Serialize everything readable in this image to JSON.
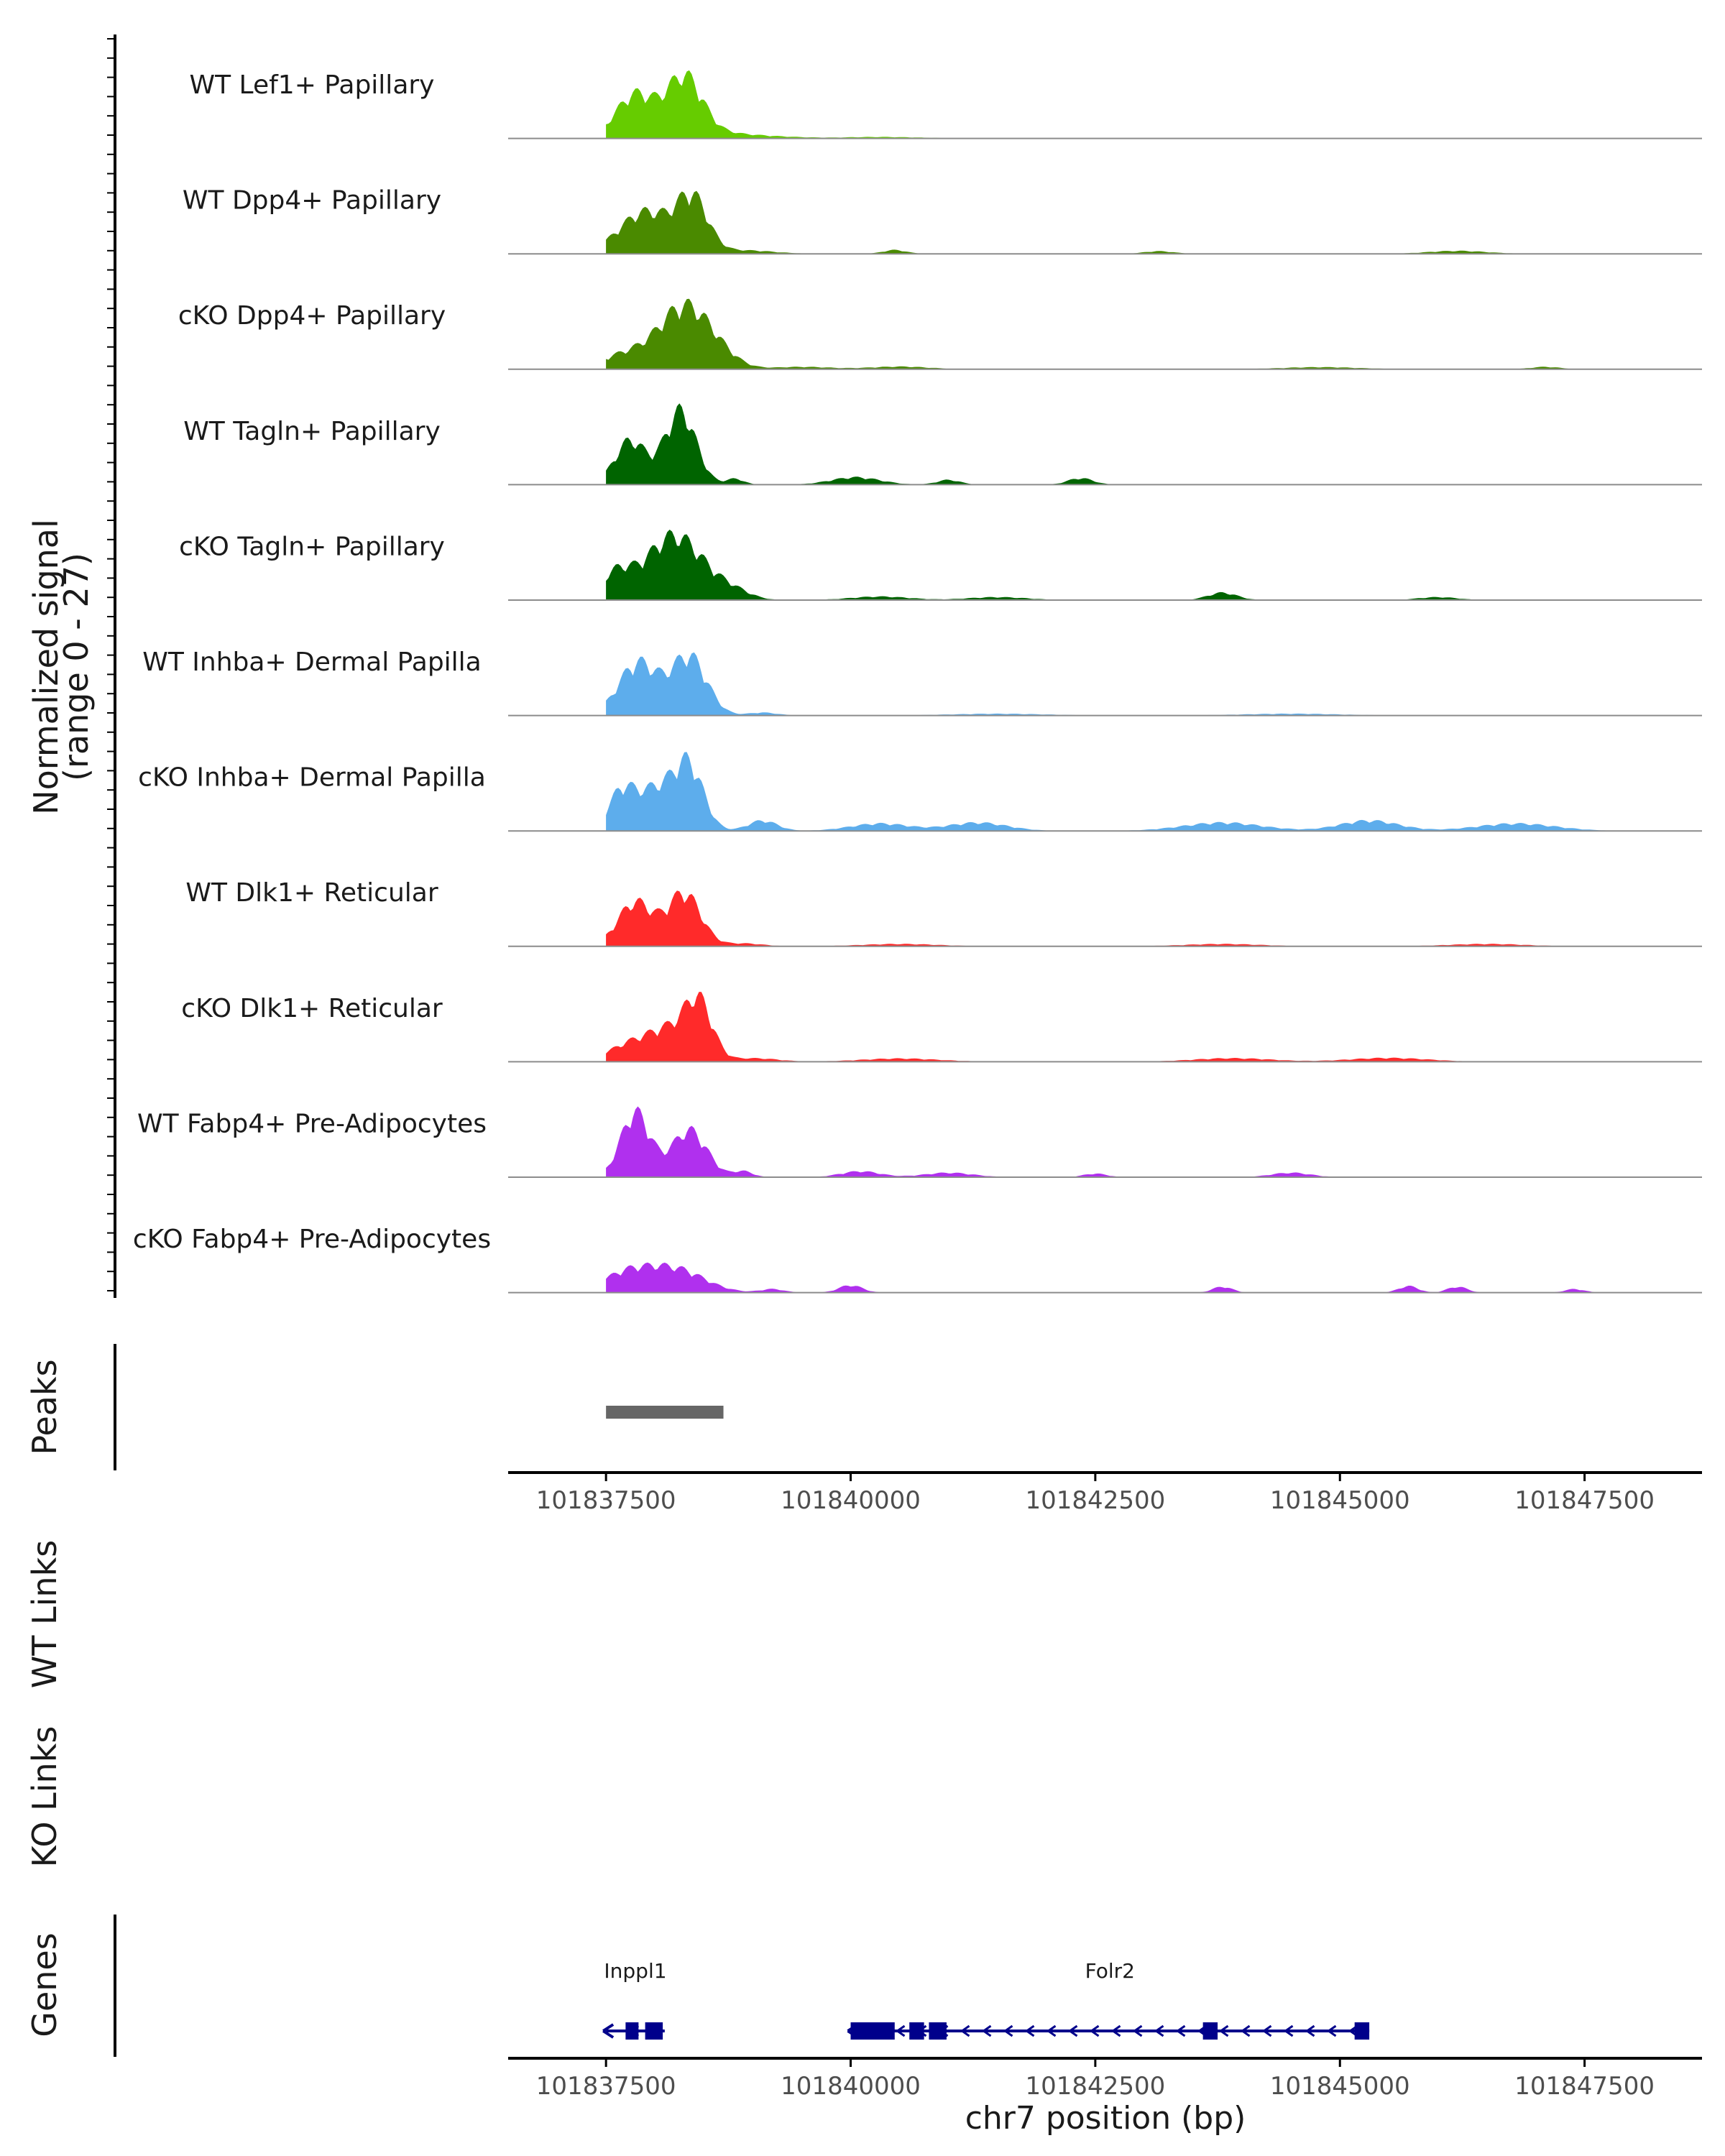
{
  "chart_data": {
    "type": "area",
    "title": "",
    "region": {
      "chrom": "chr7",
      "start": 101836500,
      "end": 101848700
    },
    "ylabel": [
      "Normalized signal",
      "(range 0 - 27)"
    ],
    "ylim": [
      0,
      27
    ],
    "xlabel": "chr7 position (bp)",
    "xticks": [
      101837500,
      101840000,
      101842500,
      101845000,
      101847500
    ],
    "tracks": [
      {
        "name": "WT Lef1+ Papillary",
        "color": "#66CC00",
        "peaks": [
          [
            101837800,
            15,
            200
          ],
          [
            101838300,
            20,
            180
          ],
          [
            101838600,
            2,
            300
          ],
          [
            101839200,
            0.6,
            300
          ],
          [
            101840300,
            0.5,
            400
          ]
        ]
      },
      {
        "name": "WT Dpp4+ Papillary",
        "color": "#4A8A00",
        "peaks": [
          [
            101837750,
            8,
            220
          ],
          [
            101838000,
            9,
            200
          ],
          [
            101838380,
            19,
            160
          ],
          [
            101838900,
            1.2,
            300
          ],
          [
            101840450,
            1.3,
            120
          ],
          [
            101843150,
            0.9,
            150
          ],
          [
            101846200,
            1.0,
            300
          ]
        ]
      },
      {
        "name": "cKO Dpp4+ Papillary",
        "color": "#4A8A00",
        "peaks": [
          [
            101837700,
            5,
            250
          ],
          [
            101838300,
            21,
            260
          ],
          [
            101838650,
            3,
            200
          ],
          [
            101839500,
            0.8,
            300
          ],
          [
            101840500,
            0.9,
            300
          ],
          [
            101844800,
            0.7,
            400
          ],
          [
            101847100,
            0.8,
            150
          ]
        ]
      },
      {
        "name": "WT Tagln+ Papillary",
        "color": "#006400",
        "peaks": [
          [
            101837750,
            15,
            160
          ],
          [
            101838260,
            25,
            160
          ],
          [
            101838820,
            2,
            90
          ],
          [
            101840050,
            2.5,
            250
          ],
          [
            101841000,
            1.6,
            120
          ],
          [
            101842350,
            2.2,
            130
          ]
        ]
      },
      {
        "name": "cKO Tagln+ Papillary",
        "color": "#006400",
        "peaks": [
          [
            101837600,
            8,
            150
          ],
          [
            101838200,
            22,
            300
          ],
          [
            101838800,
            2.5,
            180
          ],
          [
            101840300,
            1.2,
            300
          ],
          [
            101841500,
            1.0,
            300
          ],
          [
            101843800,
            2.5,
            150
          ],
          [
            101846000,
            1.0,
            200
          ]
        ]
      },
      {
        "name": "WT Inhba+ Dermal Papilla",
        "color": "#5DADEC",
        "peaks": [
          [
            101837830,
            18,
            200
          ],
          [
            101838350,
            20,
            180
          ],
          [
            101839100,
            1.0,
            150
          ],
          [
            101841500,
            0.6,
            500
          ],
          [
            101844500,
            0.6,
            500
          ]
        ]
      },
      {
        "name": "cKO Inhba+ Dermal Papilla",
        "color": "#5DADEC",
        "peaks": [
          [
            101837650,
            12,
            130
          ],
          [
            101838000,
            14,
            200
          ],
          [
            101838350,
            21,
            150
          ],
          [
            101839100,
            3.5,
            150
          ],
          [
            101840300,
            2.5,
            300
          ],
          [
            101841300,
            2.8,
            300
          ],
          [
            101843800,
            2.8,
            400
          ],
          [
            101845300,
            3.5,
            300
          ],
          [
            101846800,
            2.5,
            400
          ]
        ]
      },
      {
        "name": "WT Dlk1+ Reticular",
        "color": "#FF2A2A",
        "peaks": [
          [
            101837800,
            15,
            180
          ],
          [
            101838300,
            18,
            170
          ],
          [
            101838900,
            1.0,
            200
          ],
          [
            101840500,
            0.8,
            400
          ],
          [
            101843800,
            0.8,
            400
          ],
          [
            101846500,
            0.8,
            400
          ]
        ]
      },
      {
        "name": "cKO Dlk1+ Reticular",
        "color": "#FF2A2A",
        "peaks": [
          [
            101837750,
            6,
            220
          ],
          [
            101838150,
            10,
            200
          ],
          [
            101838450,
            19,
            140
          ],
          [
            101839000,
            1.2,
            250
          ],
          [
            101840500,
            1.1,
            400
          ],
          [
            101843900,
            1.2,
            400
          ],
          [
            101845500,
            1.3,
            400
          ]
        ]
      },
      {
        "name": "WT Fabp4+ Pre-Adipocytes",
        "color": "#B030EE",
        "peaks": [
          [
            101837800,
            22,
            150
          ],
          [
            101838350,
            16,
            180
          ],
          [
            101838900,
            2.0,
            100
          ],
          [
            101840100,
            2.0,
            200
          ],
          [
            101841000,
            1.5,
            250
          ],
          [
            101842500,
            1.2,
            120
          ],
          [
            101844500,
            1.5,
            200
          ]
        ]
      },
      {
        "name": "cKO Fabp4+ Pre-Adipocytes",
        "color": "#B030EE",
        "peaks": [
          [
            101837700,
            6,
            250
          ],
          [
            101838200,
            8,
            300
          ],
          [
            101839200,
            1.2,
            120
          ],
          [
            101840000,
            2.5,
            120
          ],
          [
            101843800,
            2.0,
            100
          ],
          [
            101845700,
            2.2,
            100
          ],
          [
            101846200,
            2.0,
            100
          ],
          [
            101847400,
            1.2,
            100
          ]
        ]
      }
    ],
    "peaks_label": "Peaks",
    "peak_regions": [
      {
        "start": 101837500,
        "end": 101838700,
        "color": "#666666"
      }
    ],
    "link_tracks": [
      "WT Links",
      "KO Links"
    ],
    "genes_label": "Genes",
    "genes": [
      {
        "name": "Inppl1",
        "start": 101837500,
        "end": 101838100,
        "strand": "-",
        "exons": [
          [
            101837700,
            101837820
          ],
          [
            101837900,
            101838080
          ]
        ]
      },
      {
        "name": "Folr2",
        "start": 101840000,
        "end": 101845300,
        "strand": "-",
        "exons": [
          [
            101840000,
            101840450
          ],
          [
            101840600,
            101840750
          ],
          [
            101840800,
            101840980
          ],
          [
            101843600,
            101843750
          ],
          [
            101845150,
            101845300
          ]
        ]
      }
    ],
    "gene_color": "#00008B"
  }
}
